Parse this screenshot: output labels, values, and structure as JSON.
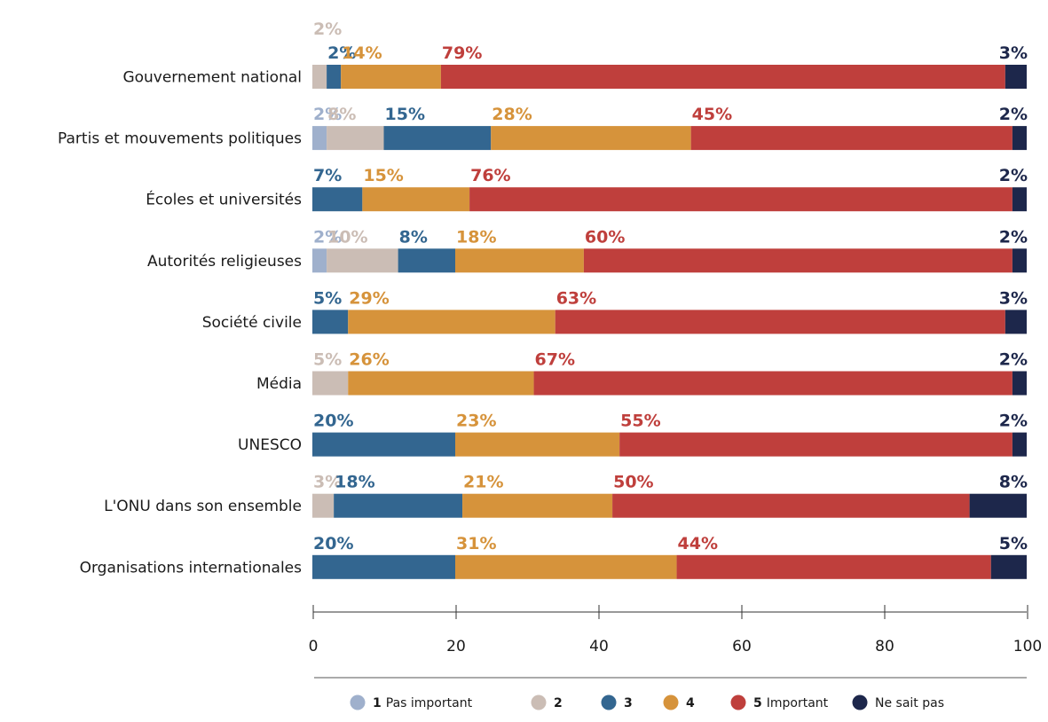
{
  "chart_data": {
    "type": "bar",
    "orientation": "horizontal",
    "stacked": true,
    "categories": [
      "Gouvernement national",
      "Partis et mouvements politiques",
      "Écoles et universités",
      "Autorités religieuses",
      "Société civile",
      "Média",
      "UNESCO",
      "L'ONU dans son ensemble",
      "Organisations internationales"
    ],
    "series": [
      {
        "name": "1 Pas important",
        "number": "1",
        "text": "Pas important",
        "color": "#9fb0cc",
        "values": [
          0,
          2,
          0,
          2,
          0,
          0,
          0,
          0,
          0
        ]
      },
      {
        "name": "2",
        "number": "2",
        "text": "",
        "color": "#cbbdb5",
        "values": [
          2,
          8,
          0,
          10,
          0,
          5,
          0,
          3,
          0
        ]
      },
      {
        "name": "3",
        "number": "3",
        "text": "",
        "color": "#336690",
        "values": [
          2,
          15,
          7,
          8,
          5,
          0,
          20,
          18,
          20
        ]
      },
      {
        "name": "4",
        "number": "4",
        "text": "",
        "color": "#d6933b",
        "values": [
          14,
          28,
          15,
          18,
          29,
          26,
          23,
          21,
          31
        ]
      },
      {
        "name": "5 Important",
        "number": "5",
        "text": "Important",
        "color": "#bf3f3c",
        "values": [
          79,
          45,
          76,
          60,
          63,
          67,
          55,
          50,
          44
        ]
      },
      {
        "name": "Ne sait pas",
        "number": "",
        "text": "Ne sait pas",
        "color": "#1d274b",
        "values": [
          3,
          2,
          2,
          2,
          3,
          2,
          2,
          8,
          5
        ]
      }
    ],
    "labels": [
      [
        "",
        "2%",
        "2%",
        "14%",
        "79%",
        "3%"
      ],
      [
        "2%",
        "8%",
        "15%",
        "28%",
        "45%",
        "2%"
      ],
      [
        "",
        "",
        "7%",
        "15%",
        "76%",
        "2%"
      ],
      [
        "2%",
        "10%",
        "8%",
        "18%",
        "60%",
        "2%"
      ],
      [
        "",
        "",
        "5%",
        "29%",
        "63%",
        "3%"
      ],
      [
        "",
        "5%",
        "",
        "26%",
        "67%",
        "2%"
      ],
      [
        "",
        "",
        "20%",
        "23%",
        "55%",
        "2%"
      ],
      [
        "",
        "3%",
        "18%",
        "21%",
        "50%",
        "8%"
      ],
      [
        "",
        "",
        "20%",
        "31%",
        "44%",
        "5%"
      ]
    ],
    "label_colors": [
      "#9fb0cc",
      "#cbbdb5",
      "#336690",
      "#d6933b",
      "#bf3f3c",
      "#1d274b"
    ],
    "xlim": [
      0,
      100
    ],
    "xticks": [
      "0",
      "20",
      "40",
      "60",
      "80",
      "100"
    ],
    "xtick_values": [
      0,
      20,
      40,
      60,
      80,
      100
    ],
    "legend_position": "bottom",
    "grid": false
  }
}
